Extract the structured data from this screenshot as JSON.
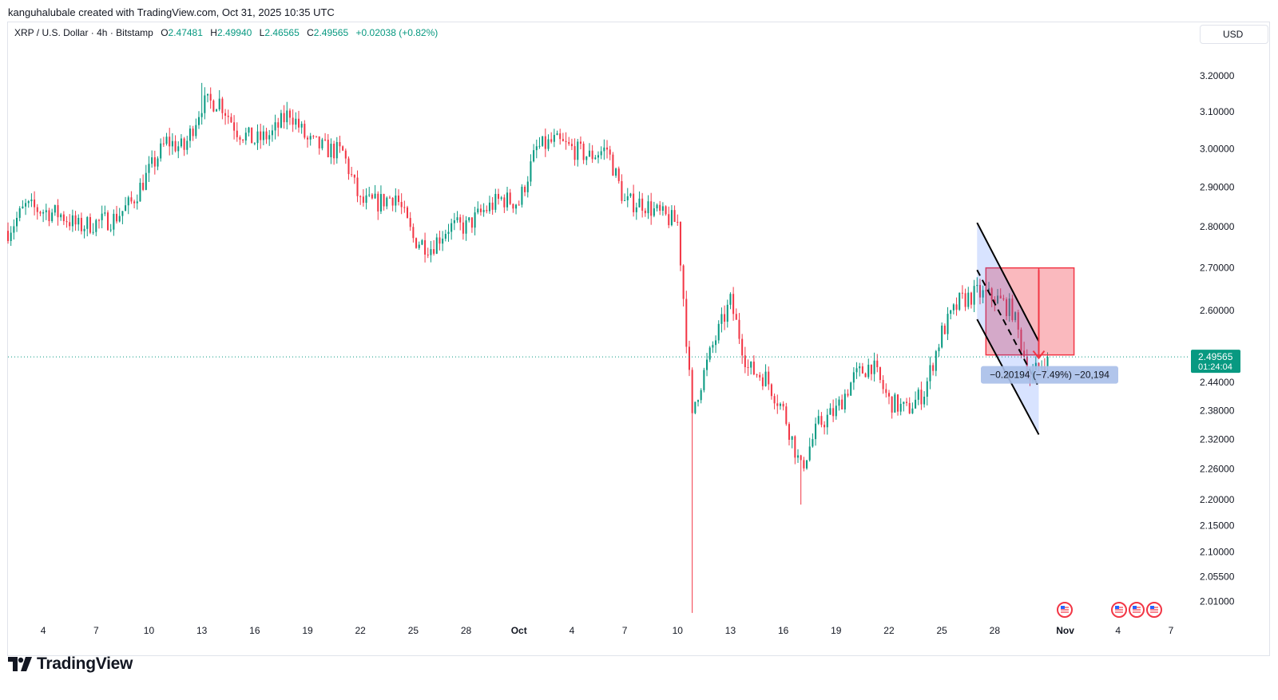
{
  "attribution": "kanguhalubale created with TradingView.com, Oct 31, 2025 10:35 UTC",
  "legend": {
    "symbol": "XRP / U.S. Dollar · 4h · Bitstamp",
    "o_label": "O",
    "o": "2.47481",
    "h_label": "H",
    "h": "2.49940",
    "l_label": "L",
    "l": "2.46565",
    "c_label": "C",
    "c": "2.49565",
    "change": "+0.02038 (+0.82%)"
  },
  "currency_button": "USD",
  "price_label": {
    "price": "2.49565",
    "countdown": "01:24:04"
  },
  "measure_label": "−0.20194 (−7.49%) −20,194",
  "brand": "TradingView",
  "colors": {
    "up": "#089981",
    "down": "#f23645",
    "text": "#131722",
    "grid": "#e0e3eb"
  },
  "icons": [
    "us-flag-icon",
    "us-flag-icon",
    "us-flag-icon",
    "us-flag-icon"
  ],
  "chart_data": {
    "type": "candlestick",
    "title": "XRP / U.S. Dollar · 4h · Bitstamp",
    "y_scale": "log",
    "ylim": [
      1.98,
      3.28
    ],
    "x_range": [
      "2025-09-02",
      "2025-11-08"
    ],
    "y_ticks": [
      "3.20000",
      "3.10000",
      "3.00000",
      "2.90000",
      "2.80000",
      "2.70000",
      "2.60000",
      "2.44000",
      "2.38000",
      "2.32000",
      "2.26000",
      "2.20000",
      "2.15000",
      "2.10000",
      "2.05500",
      "2.01000"
    ],
    "x_ticks": [
      "4",
      "7",
      "10",
      "13",
      "16",
      "19",
      "22",
      "25",
      "28",
      "Oct",
      "4",
      "7",
      "10",
      "13",
      "16",
      "19",
      "22",
      "25",
      "28",
      "Nov",
      "4",
      "7"
    ],
    "x_tick_dates": [
      "2025-09-04",
      "2025-09-07",
      "2025-09-10",
      "2025-09-13",
      "2025-09-16",
      "2025-09-19",
      "2025-09-22",
      "2025-09-25",
      "2025-09-28",
      "2025-10-01",
      "2025-10-04",
      "2025-10-07",
      "2025-10-10",
      "2025-10-13",
      "2025-10-16",
      "2025-10-19",
      "2025-10-22",
      "2025-10-25",
      "2025-10-28",
      "2025-11-01",
      "2025-11-04",
      "2025-11-07"
    ],
    "key_points": [
      [
        "2025-09-02",
        2.79
      ],
      [
        "2025-09-03",
        2.85
      ],
      [
        "2025-09-05",
        2.83
      ],
      [
        "2025-09-06",
        2.8
      ],
      [
        "2025-09-08",
        2.82
      ],
      [
        "2025-09-09",
        2.86
      ],
      [
        "2025-09-11",
        3.02
      ],
      [
        "2025-09-12",
        3.0
      ],
      [
        "2025-09-13",
        3.12
      ],
      [
        "2025-09-14",
        3.13
      ],
      [
        "2025-09-15",
        3.05
      ],
      [
        "2025-09-16",
        3.02
      ],
      [
        "2025-09-17",
        3.04
      ],
      [
        "2025-09-18",
        3.1
      ],
      [
        "2025-09-19",
        3.02
      ],
      [
        "2025-09-20",
        3.0
      ],
      [
        "2025-09-21",
        2.99
      ],
      [
        "2025-09-22",
        2.86
      ],
      [
        "2025-09-23",
        2.86
      ],
      [
        "2025-09-24",
        2.88
      ],
      [
        "2025-09-25",
        2.77
      ],
      [
        "2025-09-26",
        2.75
      ],
      [
        "2025-09-27",
        2.8
      ],
      [
        "2025-09-28",
        2.8
      ],
      [
        "2025-09-29",
        2.84
      ],
      [
        "2025-09-30",
        2.87
      ],
      [
        "2025-10-01",
        2.86
      ],
      [
        "2025-10-02",
        3.0
      ],
      [
        "2025-10-03",
        3.02
      ],
      [
        "2025-10-04",
        3.0
      ],
      [
        "2025-10-05",
        2.98
      ],
      [
        "2025-10-06",
        3.0
      ],
      [
        "2025-10-07",
        2.86
      ],
      [
        "2025-10-08",
        2.86
      ],
      [
        "2025-10-09",
        2.83
      ],
      [
        "2025-10-10",
        2.81
      ],
      [
        "2025-10-10T20:00",
        2.36
      ],
      [
        "2025-10-11",
        2.4
      ],
      [
        "2025-10-12",
        2.52
      ],
      [
        "2025-10-13",
        2.62
      ],
      [
        "2025-10-14",
        2.47
      ],
      [
        "2025-10-15",
        2.45
      ],
      [
        "2025-10-16",
        2.38
      ],
      [
        "2025-10-17",
        2.26
      ],
      [
        "2025-10-18",
        2.35
      ],
      [
        "2025-10-19",
        2.38
      ],
      [
        "2025-10-20",
        2.45
      ],
      [
        "2025-10-21",
        2.48
      ],
      [
        "2025-10-22",
        2.4
      ],
      [
        "2025-10-23",
        2.38
      ],
      [
        "2025-10-24",
        2.42
      ],
      [
        "2025-10-25",
        2.55
      ],
      [
        "2025-10-26",
        2.62
      ],
      [
        "2025-10-27",
        2.64
      ],
      [
        "2025-10-28",
        2.63
      ],
      [
        "2025-10-29",
        2.6
      ],
      [
        "2025-10-30",
        2.45
      ],
      [
        "2025-10-31",
        2.49565
      ]
    ],
    "last": {
      "open": 2.47481,
      "high": 2.4994,
      "low": 2.46565,
      "close": 2.49565,
      "change": 0.02038,
      "change_pct": 0.82
    },
    "drawings": {
      "descending_channel": {
        "upper": [
          [
            "2025-10-27",
            2.81
          ],
          [
            "2025-10-30T12:00",
            2.53
          ]
        ],
        "lower": [
          [
            "2025-10-27",
            2.58
          ],
          [
            "2025-10-30T12:00",
            2.33
          ]
        ],
        "mid": [
          [
            "2025-10-27",
            2.695
          ],
          [
            "2025-10-30T12:00",
            2.43
          ]
        ]
      },
      "position_box": {
        "from": "2025-10-27T12:00",
        "to": "2025-11-01T12:00",
        "top": 2.7,
        "entry": 2.5
      },
      "measure": {
        "from_price": 2.695,
        "to_price": 2.493,
        "delta": -0.20194,
        "pct": -7.49,
        "ticks": -20194
      }
    }
  }
}
